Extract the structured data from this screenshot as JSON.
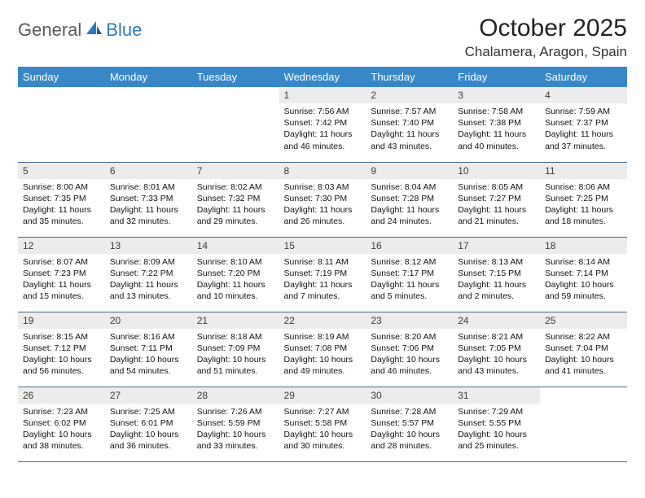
{
  "brand": {
    "part1": "General",
    "part2": "Blue"
  },
  "title": "October 2025",
  "location": "Chalamera, Aragon, Spain",
  "colors": {
    "header_bg": "#3a87c8",
    "header_text": "#ffffff",
    "daynum_bg": "#ececec",
    "rule": "#466a8f",
    "brand_gray": "#5a5a5a",
    "brand_blue": "#2f78c0"
  },
  "days_of_week": [
    "Sunday",
    "Monday",
    "Tuesday",
    "Wednesday",
    "Thursday",
    "Friday",
    "Saturday"
  ],
  "weeks": [
    [
      {
        "n": "",
        "sr": "",
        "ss": "",
        "dl": "",
        "empty": true
      },
      {
        "n": "",
        "sr": "",
        "ss": "",
        "dl": "",
        "empty": true
      },
      {
        "n": "",
        "sr": "",
        "ss": "",
        "dl": "",
        "empty": true
      },
      {
        "n": "1",
        "sr": "Sunrise: 7:56 AM",
        "ss": "Sunset: 7:42 PM",
        "dl": "Daylight: 11 hours and 46 minutes."
      },
      {
        "n": "2",
        "sr": "Sunrise: 7:57 AM",
        "ss": "Sunset: 7:40 PM",
        "dl": "Daylight: 11 hours and 43 minutes."
      },
      {
        "n": "3",
        "sr": "Sunrise: 7:58 AM",
        "ss": "Sunset: 7:38 PM",
        "dl": "Daylight: 11 hours and 40 minutes."
      },
      {
        "n": "4",
        "sr": "Sunrise: 7:59 AM",
        "ss": "Sunset: 7:37 PM",
        "dl": "Daylight: 11 hours and 37 minutes."
      }
    ],
    [
      {
        "n": "5",
        "sr": "Sunrise: 8:00 AM",
        "ss": "Sunset: 7:35 PM",
        "dl": "Daylight: 11 hours and 35 minutes."
      },
      {
        "n": "6",
        "sr": "Sunrise: 8:01 AM",
        "ss": "Sunset: 7:33 PM",
        "dl": "Daylight: 11 hours and 32 minutes."
      },
      {
        "n": "7",
        "sr": "Sunrise: 8:02 AM",
        "ss": "Sunset: 7:32 PM",
        "dl": "Daylight: 11 hours and 29 minutes."
      },
      {
        "n": "8",
        "sr": "Sunrise: 8:03 AM",
        "ss": "Sunset: 7:30 PM",
        "dl": "Daylight: 11 hours and 26 minutes."
      },
      {
        "n": "9",
        "sr": "Sunrise: 8:04 AM",
        "ss": "Sunset: 7:28 PM",
        "dl": "Daylight: 11 hours and 24 minutes."
      },
      {
        "n": "10",
        "sr": "Sunrise: 8:05 AM",
        "ss": "Sunset: 7:27 PM",
        "dl": "Daylight: 11 hours and 21 minutes."
      },
      {
        "n": "11",
        "sr": "Sunrise: 8:06 AM",
        "ss": "Sunset: 7:25 PM",
        "dl": "Daylight: 11 hours and 18 minutes."
      }
    ],
    [
      {
        "n": "12",
        "sr": "Sunrise: 8:07 AM",
        "ss": "Sunset: 7:23 PM",
        "dl": "Daylight: 11 hours and 15 minutes."
      },
      {
        "n": "13",
        "sr": "Sunrise: 8:09 AM",
        "ss": "Sunset: 7:22 PM",
        "dl": "Daylight: 11 hours and 13 minutes."
      },
      {
        "n": "14",
        "sr": "Sunrise: 8:10 AM",
        "ss": "Sunset: 7:20 PM",
        "dl": "Daylight: 11 hours and 10 minutes."
      },
      {
        "n": "15",
        "sr": "Sunrise: 8:11 AM",
        "ss": "Sunset: 7:19 PM",
        "dl": "Daylight: 11 hours and 7 minutes."
      },
      {
        "n": "16",
        "sr": "Sunrise: 8:12 AM",
        "ss": "Sunset: 7:17 PM",
        "dl": "Daylight: 11 hours and 5 minutes."
      },
      {
        "n": "17",
        "sr": "Sunrise: 8:13 AM",
        "ss": "Sunset: 7:15 PM",
        "dl": "Daylight: 11 hours and 2 minutes."
      },
      {
        "n": "18",
        "sr": "Sunrise: 8:14 AM",
        "ss": "Sunset: 7:14 PM",
        "dl": "Daylight: 10 hours and 59 minutes."
      }
    ],
    [
      {
        "n": "19",
        "sr": "Sunrise: 8:15 AM",
        "ss": "Sunset: 7:12 PM",
        "dl": "Daylight: 10 hours and 56 minutes."
      },
      {
        "n": "20",
        "sr": "Sunrise: 8:16 AM",
        "ss": "Sunset: 7:11 PM",
        "dl": "Daylight: 10 hours and 54 minutes."
      },
      {
        "n": "21",
        "sr": "Sunrise: 8:18 AM",
        "ss": "Sunset: 7:09 PM",
        "dl": "Daylight: 10 hours and 51 minutes."
      },
      {
        "n": "22",
        "sr": "Sunrise: 8:19 AM",
        "ss": "Sunset: 7:08 PM",
        "dl": "Daylight: 10 hours and 49 minutes."
      },
      {
        "n": "23",
        "sr": "Sunrise: 8:20 AM",
        "ss": "Sunset: 7:06 PM",
        "dl": "Daylight: 10 hours and 46 minutes."
      },
      {
        "n": "24",
        "sr": "Sunrise: 8:21 AM",
        "ss": "Sunset: 7:05 PM",
        "dl": "Daylight: 10 hours and 43 minutes."
      },
      {
        "n": "25",
        "sr": "Sunrise: 8:22 AM",
        "ss": "Sunset: 7:04 PM",
        "dl": "Daylight: 10 hours and 41 minutes."
      }
    ],
    [
      {
        "n": "26",
        "sr": "Sunrise: 7:23 AM",
        "ss": "Sunset: 6:02 PM",
        "dl": "Daylight: 10 hours and 38 minutes."
      },
      {
        "n": "27",
        "sr": "Sunrise: 7:25 AM",
        "ss": "Sunset: 6:01 PM",
        "dl": "Daylight: 10 hours and 36 minutes."
      },
      {
        "n": "28",
        "sr": "Sunrise: 7:26 AM",
        "ss": "Sunset: 5:59 PM",
        "dl": "Daylight: 10 hours and 33 minutes."
      },
      {
        "n": "29",
        "sr": "Sunrise: 7:27 AM",
        "ss": "Sunset: 5:58 PM",
        "dl": "Daylight: 10 hours and 30 minutes."
      },
      {
        "n": "30",
        "sr": "Sunrise: 7:28 AM",
        "ss": "Sunset: 5:57 PM",
        "dl": "Daylight: 10 hours and 28 minutes."
      },
      {
        "n": "31",
        "sr": "Sunrise: 7:29 AM",
        "ss": "Sunset: 5:55 PM",
        "dl": "Daylight: 10 hours and 25 minutes."
      },
      {
        "n": "",
        "sr": "",
        "ss": "",
        "dl": "",
        "empty": true
      }
    ]
  ]
}
